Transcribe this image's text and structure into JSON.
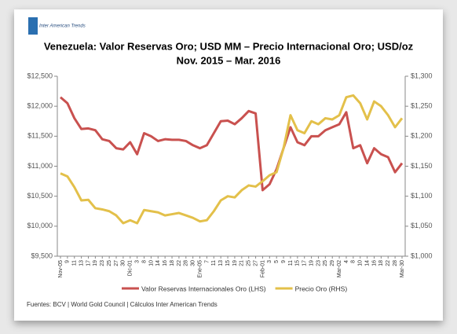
{
  "logo": "Inter American Trends",
  "chart_data": {
    "type": "line",
    "title": "Venezuela: Valor Reservas Oro; USD MM – Precio Internacional Oro; USD/oz",
    "subtitle": "Nov. 2015 – Mar. 2016",
    "source": "Fuentes: BCV | World Gold Council  | Cálculos Inter American Trends",
    "categories": [
      "Nov-05",
      "9",
      "11",
      "13",
      "17",
      "19",
      "23",
      "25",
      "27",
      "30",
      "Dic-01",
      "3",
      "8",
      "10",
      "14",
      "16",
      "18",
      "22",
      "28",
      "30",
      "Ene-05",
      "7",
      "11",
      "13",
      "15",
      "19",
      "21",
      "25",
      "27",
      "Feb-01",
      "3",
      "5",
      "9",
      "11",
      "15",
      "17",
      "19",
      "23",
      "25",
      "29",
      "Mar-02",
      "4",
      "8",
      "10",
      "14",
      "16",
      "18",
      "22",
      "28",
      "Mar-30"
    ],
    "series": [
      {
        "name": "Valor Reservas Internacionales Oro (LHS)",
        "color": "#c9514f",
        "values": [
          12150,
          12050,
          11800,
          11620,
          11630,
          11600,
          11450,
          11420,
          11300,
          11280,
          11400,
          11200,
          11550,
          11500,
          11420,
          11450,
          11440,
          11440,
          11420,
          11350,
          11300,
          11350,
          11550,
          11750,
          11760,
          11700,
          11800,
          11920,
          11880,
          10600,
          10700,
          10950,
          11300,
          11650,
          11400,
          11350,
          11500,
          11500,
          11600,
          11650,
          11700,
          11900,
          11300,
          11350,
          11050,
          11300,
          11200,
          11150,
          10900,
          11050
        ]
      },
      {
        "name": "Precio Oro (RHS)",
        "color": "#e3c04a",
        "axis": "y2",
        "values": [
          1138,
          1133,
          1115,
          1093,
          1094,
          1080,
          1078,
          1075,
          1068,
          1055,
          1060,
          1055,
          1077,
          1075,
          1073,
          1068,
          1070,
          1072,
          1068,
          1064,
          1058,
          1060,
          1075,
          1093,
          1100,
          1098,
          1110,
          1118,
          1116,
          1125,
          1135,
          1140,
          1180,
          1235,
          1210,
          1205,
          1225,
          1220,
          1230,
          1228,
          1235,
          1265,
          1268,
          1255,
          1228,
          1258,
          1250,
          1235,
          1215,
          1230
        ]
      }
    ],
    "ylim": [
      9500,
      12500
    ],
    "yticks": [
      {
        "value": 9500,
        "label": "$9,500"
      },
      {
        "value": 10000,
        "label": "$10,000"
      },
      {
        "value": 10500,
        "label": "$10,500"
      },
      {
        "value": 11000,
        "label": "$11,000"
      },
      {
        "value": 11500,
        "label": "$11,500"
      },
      {
        "value": 12000,
        "label": "$12,000"
      },
      {
        "value": 12500,
        "label": "$12,500"
      }
    ],
    "y2lim": [
      1000,
      1300
    ],
    "y2ticks": [
      {
        "value": 1000,
        "label": "$1,000"
      },
      {
        "value": 1050,
        "label": "$1,050"
      },
      {
        "value": 1100,
        "label": "$1,100"
      },
      {
        "value": 1150,
        "label": "$1,150"
      },
      {
        "value": 1200,
        "label": "$1,200"
      },
      {
        "value": 1250,
        "label": "$1,250"
      },
      {
        "value": 1300,
        "label": "$1,300"
      }
    ]
  }
}
